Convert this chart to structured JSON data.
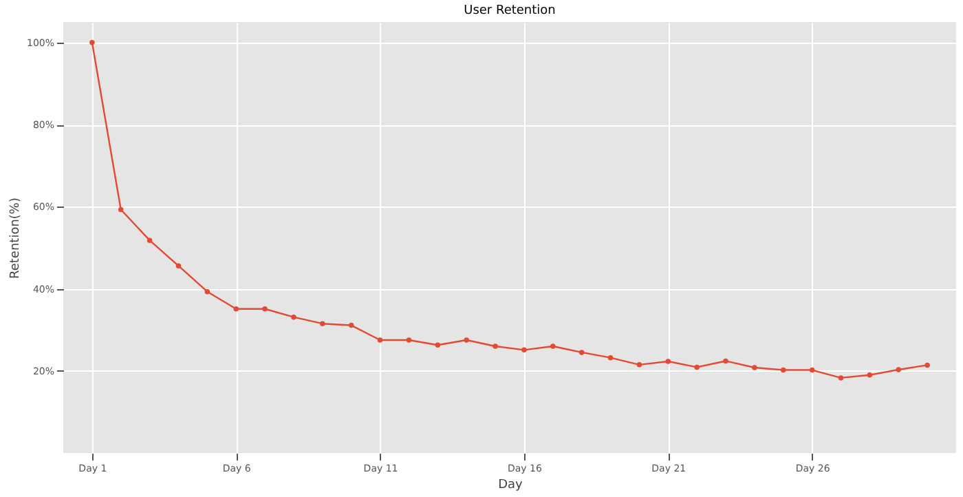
{
  "chart_data": {
    "type": "line",
    "title": "User Retention",
    "xlabel": "Day",
    "ylabel": "Retention(%)",
    "categories": [
      "Day 1",
      null,
      null,
      null,
      null,
      "Day 6",
      null,
      null,
      null,
      null,
      "Day 11",
      null,
      null,
      null,
      null,
      "Day 16",
      null,
      null,
      null,
      null,
      "Day 21",
      null,
      null,
      null,
      null,
      "Day 26",
      null,
      null,
      null,
      null
    ],
    "series": [
      {
        "color": "#e24a33",
        "values": [
          100,
          59.3,
          51.8,
          45.6,
          39.3,
          35.1,
          35.1,
          33.1,
          31.5,
          31.1,
          27.5,
          27.5,
          26.3,
          27.5,
          26.0,
          25.1,
          26.0,
          24.5,
          23.2,
          21.5,
          22.3,
          20.9,
          22.4,
          20.8,
          20.2,
          20.2,
          18.3,
          19.0,
          20.3,
          21.4
        ]
      }
    ],
    "ylim": [
      0,
      105
    ],
    "yticks": [
      {
        "value": 20,
        "label": "20%"
      },
      {
        "value": 40,
        "label": "40%"
      },
      {
        "value": 60,
        "label": "60%"
      },
      {
        "value": 80,
        "label": "80%"
      },
      {
        "value": 100,
        "label": "100%"
      }
    ],
    "grid": true,
    "marker": "circle",
    "line_style": "solid"
  }
}
